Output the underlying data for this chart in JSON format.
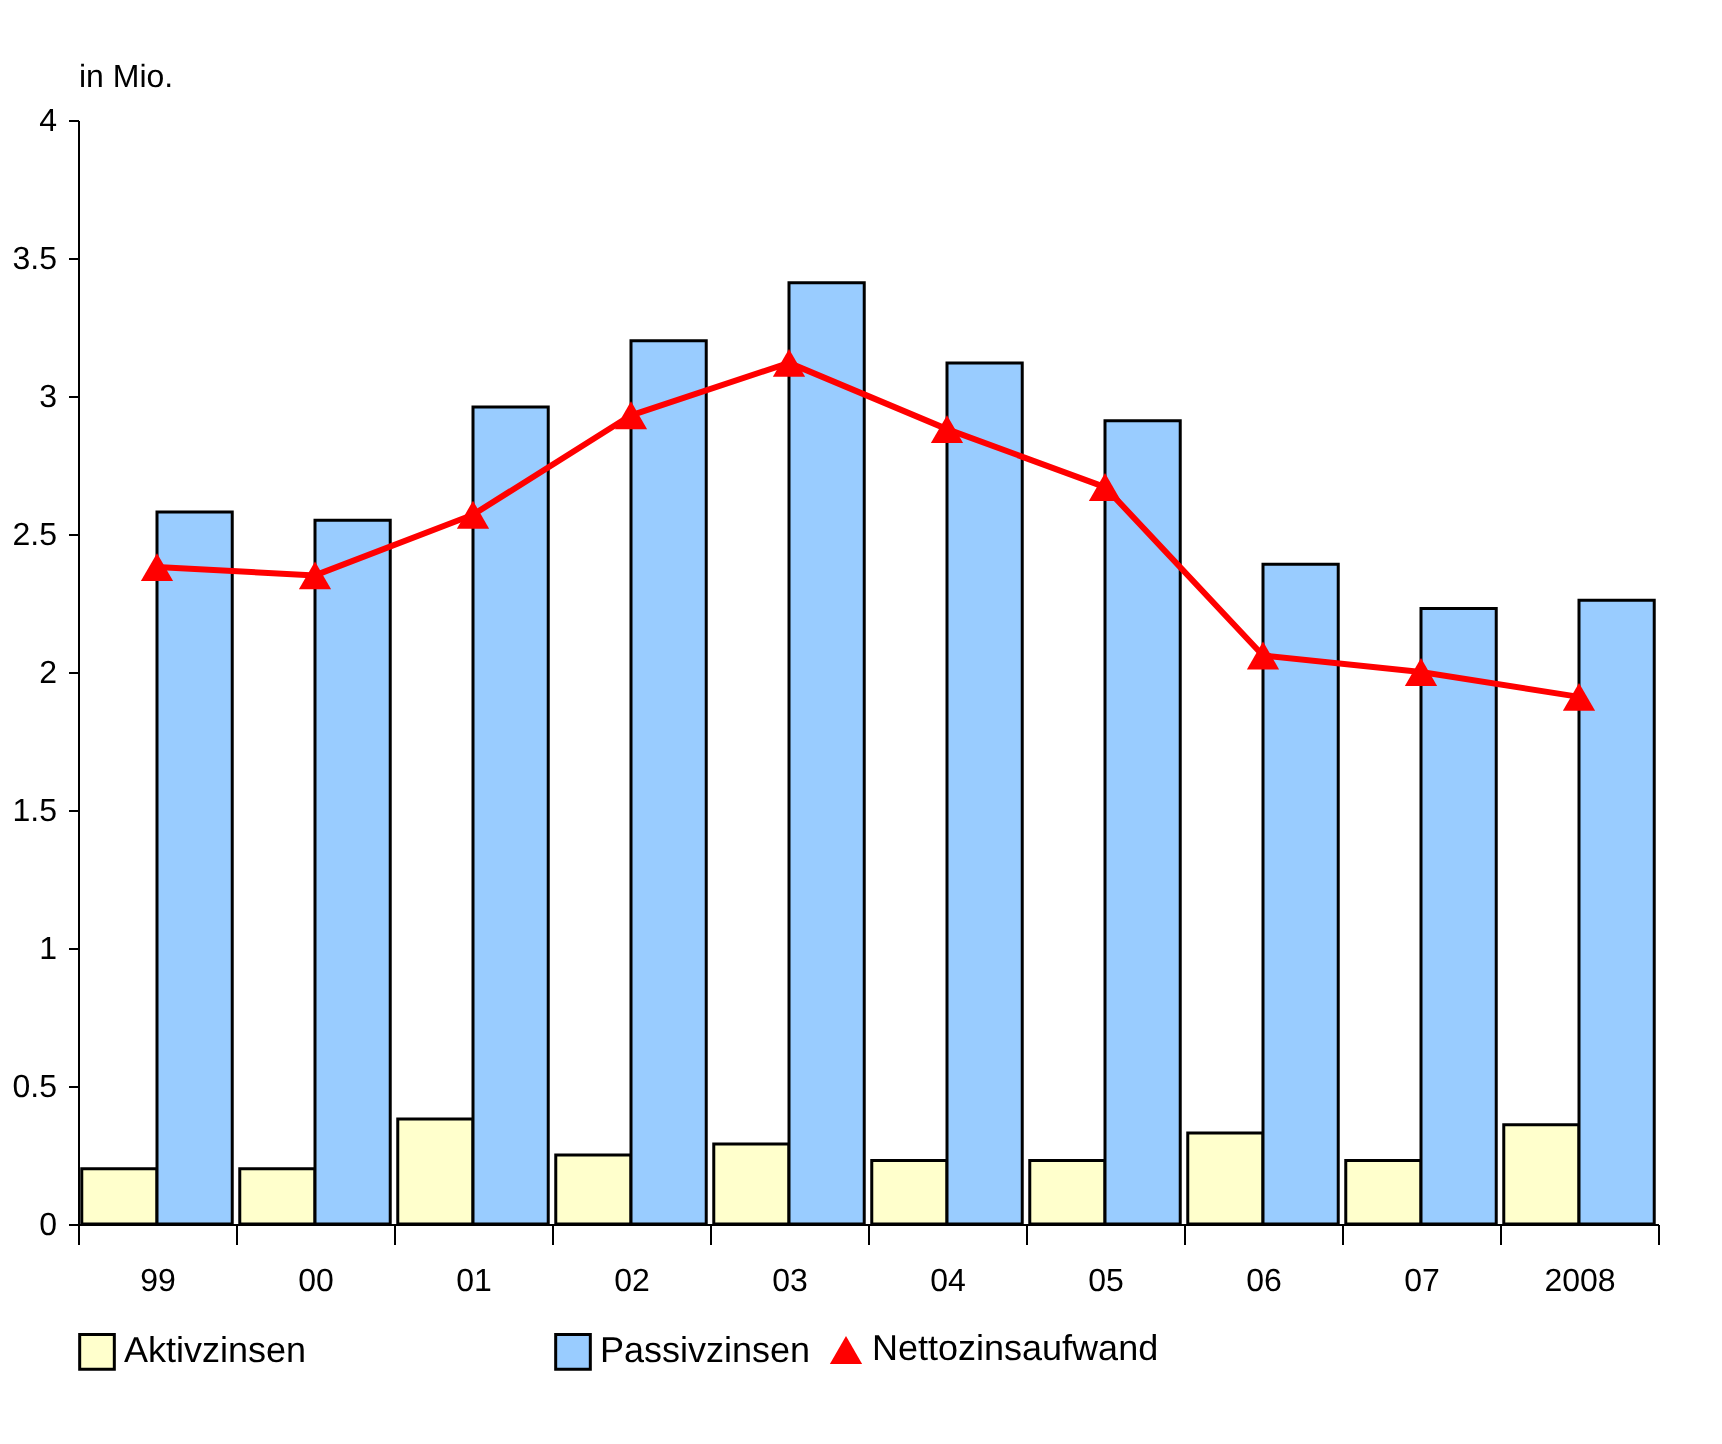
{
  "chart_data": {
    "type": "bar",
    "ylabel": "in Mio.",
    "categories": [
      "99",
      "00",
      "01",
      "02",
      "03",
      "04",
      "05",
      "06",
      "07",
      "2008"
    ],
    "series": [
      {
        "name": "Aktivzinsen",
        "color": "#ffffcc",
        "values": [
          0.2,
          0.2,
          0.38,
          0.25,
          0.29,
          0.23,
          0.23,
          0.33,
          0.23,
          0.36
        ]
      },
      {
        "name": "Passivzinsen",
        "color": "#99ccff",
        "values": [
          2.58,
          2.55,
          2.96,
          3.2,
          3.41,
          3.12,
          2.91,
          2.39,
          2.23,
          2.26
        ]
      },
      {
        "name": "Nettozinsaufwand",
        "type": "line",
        "color": "#ff0000",
        "marker": "triangle",
        "values": [
          2.38,
          2.35,
          2.57,
          2.93,
          3.12,
          2.88,
          2.67,
          2.06,
          2.0,
          1.91
        ]
      }
    ],
    "ylim": [
      0,
      4
    ],
    "yticks": [
      0,
      0.5,
      1,
      1.5,
      2,
      2.5,
      3,
      3.5,
      4
    ],
    "grid": false,
    "legend": "bottom"
  }
}
